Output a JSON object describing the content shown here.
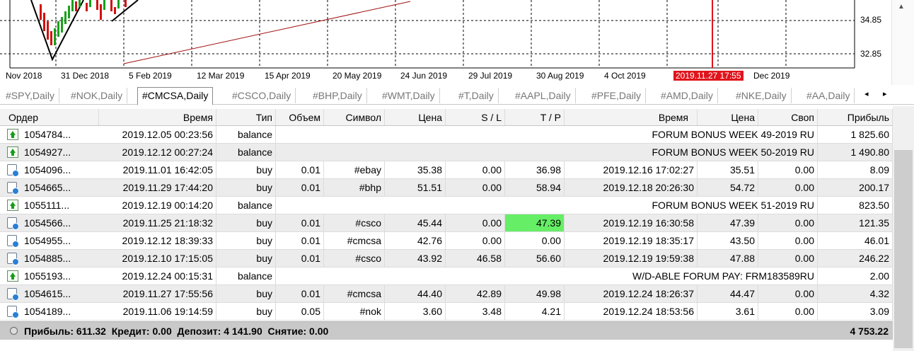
{
  "chart": {
    "price_labels": [
      "34.85",
      "32.85"
    ],
    "date_labels": [
      "Nov 2018",
      "31 Dec 2018",
      "5 Feb 2019",
      "12 Mar 2019",
      "15 Apr 2019",
      "20 May 2019",
      "24 Jun 2019",
      "29 Jul 2019",
      "30 Aug 2019",
      "4 Oct 2019",
      "2019.11.27 17:55",
      "Dec 2019"
    ],
    "current_date_label": "2019.11.27 17:55",
    "accent_color": "#e0141c"
  },
  "tabs": [
    {
      "label": "#SPY,Daily",
      "active": false
    },
    {
      "label": "#NOK,Daily",
      "active": false
    },
    {
      "label": "#CMCSA,Daily",
      "active": true
    },
    {
      "label": "#CSCO,Daily",
      "active": false
    },
    {
      "label": "#BHP,Daily",
      "active": false
    },
    {
      "label": "#WMT,Daily",
      "active": false
    },
    {
      "label": "#T,Daily",
      "active": false
    },
    {
      "label": "#AAPL,Daily",
      "active": false
    },
    {
      "label": "#PFE,Daily",
      "active": false
    },
    {
      "label": "#AMD,Daily",
      "active": false
    },
    {
      "label": "#NKE,Daily",
      "active": false
    },
    {
      "label": "#AA,Daily",
      "active": false
    }
  ],
  "tab_nav": {
    "prev": "◂",
    "next": "▸"
  },
  "columns": {
    "order": "Ордер",
    "open_time": "Время",
    "type": "Тип",
    "volume": "Объем",
    "symbol": "Символ",
    "open_price": "Цена",
    "sl": "S / L",
    "tp": "T / P",
    "close_time": "Время",
    "close_price": "Цена",
    "swap": "Своп",
    "profit": "Прибыль"
  },
  "rows": [
    {
      "icon": "balance-icon",
      "order": "1054784...",
      "open_time": "2019.12.05 00:23:56",
      "type": "balance",
      "comment": "FORUM BONUS WEEK 49-2019 RU",
      "profit": "1 825.60"
    },
    {
      "icon": "balance-icon",
      "order": "1054927...",
      "open_time": "2019.12.12 00:27:24",
      "type": "balance",
      "comment": "FORUM BONUS WEEK 50-2019 RU",
      "profit": "1 490.80"
    },
    {
      "icon": "order-icon",
      "order": "1054096...",
      "open_time": "2019.11.01 16:42:05",
      "type": "buy",
      "volume": "0.01",
      "symbol": "#ebay",
      "open_price": "35.38",
      "sl": "0.00",
      "tp": "36.98",
      "close_time": "2019.12.16 17:02:27",
      "close_price": "35.51",
      "swap": "0.00",
      "profit": "8.09"
    },
    {
      "icon": "order-icon",
      "order": "1054665...",
      "open_time": "2019.11.29 17:44:20",
      "type": "buy",
      "volume": "0.01",
      "symbol": "#bhp",
      "open_price": "51.51",
      "sl": "0.00",
      "tp": "58.94",
      "close_time": "2019.12.18 20:26:30",
      "close_price": "54.72",
      "swap": "0.00",
      "profit": "200.17"
    },
    {
      "icon": "balance-icon",
      "order": "1055111...",
      "open_time": "2019.12.19 00:14:20",
      "type": "balance",
      "comment": "FORUM BONUS WEEK 51-2019 RU",
      "profit": "823.50"
    },
    {
      "icon": "order-icon",
      "order": "1054566...",
      "open_time": "2019.11.25 21:18:32",
      "type": "buy",
      "volume": "0.01",
      "symbol": "#csco",
      "open_price": "45.44",
      "sl": "0.00",
      "tp": "47.39",
      "tp_highlight": true,
      "close_time": "2019.12.19 16:30:58",
      "close_price": "47.39",
      "swap": "0.00",
      "profit": "121.35"
    },
    {
      "icon": "order-icon",
      "order": "1054955...",
      "open_time": "2019.12.12 18:39:33",
      "type": "buy",
      "volume": "0.01",
      "symbol": "#cmcsa",
      "open_price": "42.76",
      "sl": "0.00",
      "tp": "0.00",
      "close_time": "2019.12.19 18:35:17",
      "close_price": "43.50",
      "swap": "0.00",
      "profit": "46.01"
    },
    {
      "icon": "order-icon",
      "order": "1054885...",
      "open_time": "2019.12.10 17:15:05",
      "type": "buy",
      "volume": "0.01",
      "symbol": "#csco",
      "open_price": "43.92",
      "sl": "46.58",
      "tp": "56.60",
      "close_time": "2019.12.19 19:59:38",
      "close_price": "47.88",
      "swap": "0.00",
      "profit": "246.22"
    },
    {
      "icon": "balance-icon",
      "order": "1055193...",
      "open_time": "2019.12.24 00:15:31",
      "type": "balance",
      "comment": "W/D-ABLE FORUM PAY: FRM183589RU",
      "profit": "2.00"
    },
    {
      "icon": "order-icon",
      "order": "1054615...",
      "open_time": "2019.11.27 17:55:56",
      "type": "buy",
      "volume": "0.01",
      "symbol": "#cmcsa",
      "open_price": "44.40",
      "sl": "42.89",
      "tp": "49.98",
      "close_time": "2019.12.24 18:26:37",
      "close_price": "44.47",
      "swap": "0.00",
      "profit": "4.32"
    },
    {
      "icon": "order-icon",
      "order": "1054189...",
      "open_time": "2019.11.06 19:14:59",
      "type": "buy",
      "volume": "0.05",
      "symbol": "#nok",
      "open_price": "3.60",
      "sl": "3.48",
      "tp": "4.21",
      "close_time": "2019.12.24 18:53:56",
      "close_price": "3.61",
      "swap": "0.00",
      "profit": "3.09"
    }
  ],
  "summary": {
    "text": "Прибыль: 611.32  Кредит: 0.00  Депозит: 4 141.90  Снятие: 0.00",
    "total": "4 753.22"
  }
}
